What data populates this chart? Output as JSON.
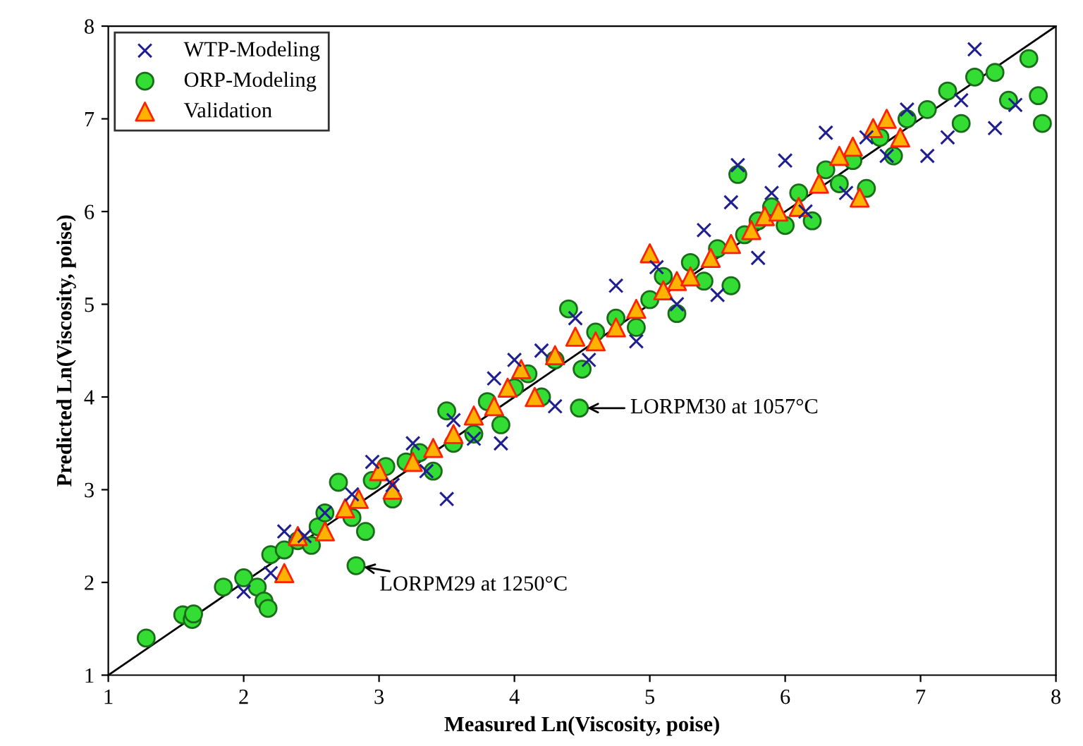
{
  "chart_data": {
    "type": "scatter",
    "xlabel": "Measured Ln(Viscosity, poise)",
    "ylabel": "Predicted Ln(Viscosity, poise)",
    "xlim": [
      1,
      8
    ],
    "ylim": [
      1,
      8
    ],
    "xticks": [
      1,
      2,
      3,
      4,
      5,
      6,
      7,
      8
    ],
    "yticks": [
      1,
      2,
      3,
      4,
      5,
      6,
      7,
      8
    ],
    "grid": false,
    "legend": "top left",
    "series": [
      {
        "type": "line",
        "marker": "none",
        "color": "#000000",
        "x": [
          1,
          8
        ],
        "values": [
          1,
          8
        ]
      },
      {
        "name": "WTP-Modeling",
        "marker": "cross",
        "color": "#1f1f8f",
        "x": [
          2.0,
          2.2,
          2.3,
          2.45,
          2.6,
          2.8,
          2.95,
          3.1,
          3.25,
          3.35,
          3.5,
          3.55,
          3.7,
          3.85,
          3.9,
          4.0,
          4.2,
          4.3,
          4.45,
          4.55,
          4.75,
          4.9,
          5.05,
          5.2,
          5.4,
          5.5,
          5.6,
          5.65,
          5.8,
          5.9,
          6.0,
          6.15,
          6.3,
          6.45,
          6.6,
          6.75,
          6.9,
          7.05,
          7.2,
          7.3,
          7.4,
          7.55,
          7.7
        ],
        "values": [
          1.9,
          2.1,
          2.55,
          2.5,
          2.75,
          2.95,
          3.3,
          3.05,
          3.5,
          3.2,
          2.9,
          3.75,
          3.55,
          4.2,
          3.5,
          4.4,
          4.5,
          3.9,
          4.85,
          4.4,
          5.2,
          4.6,
          5.4,
          5.0,
          5.8,
          5.1,
          6.1,
          6.5,
          5.5,
          6.2,
          6.55,
          6.0,
          6.85,
          6.2,
          6.8,
          6.6,
          7.1,
          6.6,
          6.8,
          7.2,
          7.75,
          6.9,
          7.15
        ]
      },
      {
        "name": "ORP-Modeling",
        "marker": "circle",
        "color": "#33dd33",
        "x": [
          1.28,
          1.55,
          1.62,
          1.63,
          1.85,
          2.0,
          2.1,
          2.15,
          2.18,
          2.2,
          2.3,
          2.4,
          2.5,
          2.55,
          2.6,
          2.7,
          2.8,
          2.83,
          2.9,
          2.95,
          3.05,
          3.1,
          3.2,
          3.3,
          3.4,
          3.5,
          3.55,
          3.7,
          3.8,
          3.9,
          4.0,
          4.1,
          4.2,
          4.3,
          4.4,
          4.48,
          4.5,
          4.6,
          4.75,
          4.9,
          5.0,
          5.1,
          5.2,
          5.3,
          5.4,
          5.5,
          5.6,
          5.65,
          5.7,
          5.8,
          5.9,
          6.0,
          6.1,
          6.2,
          6.3,
          6.4,
          6.5,
          6.6,
          6.7,
          6.8,
          6.9,
          7.05,
          7.2,
          7.3,
          7.4,
          7.55,
          7.65,
          7.8,
          7.87,
          7.9
        ],
        "values": [
          1.4,
          1.65,
          1.6,
          1.66,
          1.95,
          2.05,
          1.95,
          1.8,
          1.72,
          2.3,
          2.35,
          2.45,
          2.4,
          2.6,
          2.75,
          3.08,
          2.7,
          2.18,
          2.55,
          3.1,
          3.25,
          2.9,
          3.3,
          3.4,
          3.2,
          3.85,
          3.5,
          3.6,
          3.95,
          3.7,
          4.1,
          4.25,
          4.0,
          4.4,
          4.95,
          3.88,
          4.3,
          4.7,
          4.85,
          4.75,
          5.05,
          5.3,
          4.9,
          5.45,
          5.25,
          5.6,
          5.2,
          6.4,
          5.75,
          5.9,
          6.05,
          5.85,
          6.2,
          5.9,
          6.45,
          6.3,
          6.55,
          6.25,
          6.8,
          6.6,
          7.0,
          7.1,
          7.3,
          6.95,
          7.45,
          7.5,
          7.2,
          7.65,
          7.25,
          6.95
        ]
      },
      {
        "name": "Validation",
        "marker": "triangle",
        "color": "#ffb300",
        "x": [
          2.3,
          2.4,
          2.6,
          2.75,
          2.85,
          3.0,
          3.1,
          3.25,
          3.4,
          3.55,
          3.7,
          3.85,
          3.95,
          4.05,
          4.15,
          4.3,
          4.45,
          4.6,
          4.75,
          4.9,
          5.0,
          5.1,
          5.2,
          5.3,
          5.45,
          5.6,
          5.75,
          5.85,
          5.95,
          6.1,
          6.25,
          6.4,
          6.5,
          6.55,
          6.65,
          6.75,
          6.85
        ],
        "values": [
          2.1,
          2.5,
          2.55,
          2.8,
          2.9,
          3.2,
          3.0,
          3.3,
          3.45,
          3.6,
          3.8,
          3.9,
          4.1,
          4.3,
          4.0,
          4.45,
          4.65,
          4.6,
          4.75,
          4.95,
          5.55,
          5.15,
          5.25,
          5.3,
          5.5,
          5.65,
          5.8,
          5.95,
          6.0,
          6.05,
          6.3,
          6.6,
          6.7,
          6.15,
          6.9,
          7.0,
          6.8
        ]
      }
    ],
    "annotations": [
      {
        "text": "LORPM30 at 1057°C",
        "x": 4.48,
        "y": 3.88
      },
      {
        "text": "LORPM29 at 1250°C",
        "x": 2.83,
        "y": 2.18
      }
    ]
  }
}
